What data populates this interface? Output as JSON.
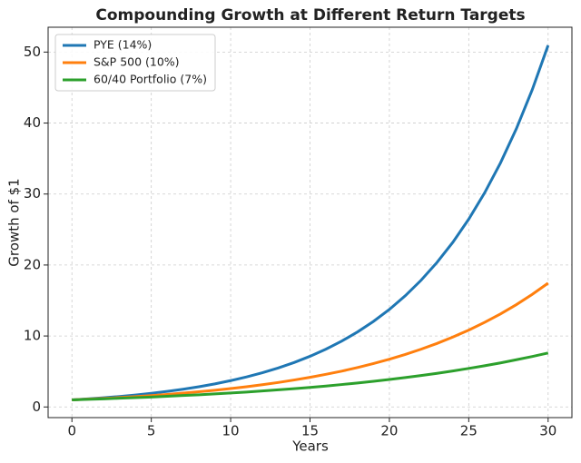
{
  "chart_data": {
    "type": "line",
    "title": "Compounding Growth at Different Return Targets",
    "xlabel": "Years",
    "ylabel": "Growth of $1",
    "x": [
      0,
      1,
      2,
      3,
      4,
      5,
      6,
      7,
      8,
      9,
      10,
      11,
      12,
      13,
      14,
      15,
      16,
      17,
      18,
      19,
      20,
      21,
      22,
      23,
      24,
      25,
      26,
      27,
      28,
      29,
      30
    ],
    "series": [
      {
        "name": "PYE (14%)",
        "color": "#1f77b4",
        "values": [
          1,
          1.14,
          1.3,
          1.48,
          1.69,
          1.93,
          2.19,
          2.5,
          2.85,
          3.25,
          3.71,
          4.23,
          4.82,
          5.49,
          6.26,
          7.14,
          8.14,
          9.28,
          10.58,
          12.06,
          13.74,
          15.67,
          17.86,
          20.36,
          23.21,
          26.46,
          30.17,
          34.39,
          39.2,
          44.69,
          50.95
        ]
      },
      {
        "name": "S&P 500 (10%)",
        "color": "#ff7f0e",
        "values": [
          1,
          1.1,
          1.21,
          1.33,
          1.46,
          1.61,
          1.77,
          1.95,
          2.14,
          2.36,
          2.59,
          2.85,
          3.14,
          3.45,
          3.8,
          4.18,
          4.6,
          5.05,
          5.56,
          6.12,
          6.73,
          7.4,
          8.14,
          8.95,
          9.85,
          10.83,
          11.92,
          13.11,
          14.42,
          15.86,
          17.45
        ]
      },
      {
        "name": "60/40 Portfolio (7%)",
        "color": "#2ca02c",
        "values": [
          1,
          1.07,
          1.14,
          1.23,
          1.31,
          1.4,
          1.5,
          1.61,
          1.72,
          1.84,
          1.97,
          2.1,
          2.25,
          2.41,
          2.58,
          2.76,
          2.95,
          3.16,
          3.38,
          3.62,
          3.87,
          4.14,
          4.43,
          4.74,
          5.07,
          5.43,
          5.81,
          6.21,
          6.65,
          7.11,
          7.61
        ]
      }
    ],
    "xlim": [
      -1.5,
      31.5
    ],
    "ylim": [
      -1.5,
      53.5
    ],
    "xticks": [
      0,
      5,
      10,
      15,
      20,
      25,
      30
    ],
    "yticks": [
      0,
      10,
      20,
      30,
      40,
      50
    ],
    "grid": true,
    "legend": "upper-left"
  }
}
